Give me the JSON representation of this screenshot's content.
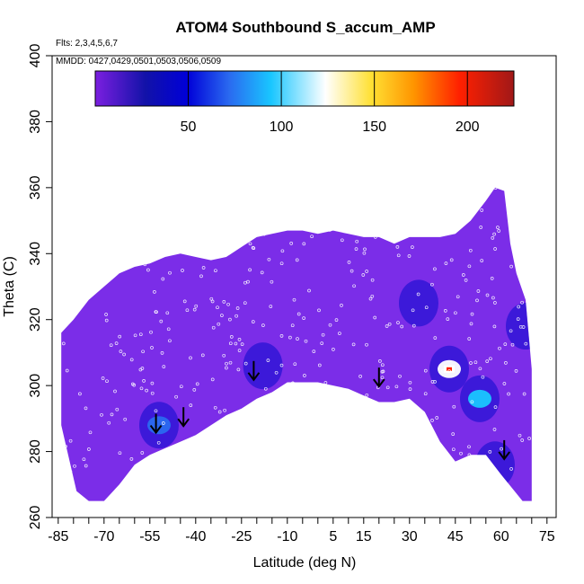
{
  "chart_data": {
    "type": "heatmap",
    "title": "ATOM4 Southbound S_accum_AMP",
    "flights_note": "Flts: 2,3,4,5,6,7",
    "dates_note": "MMDD: 0427,0429,0501,0503,0506,0509",
    "xlabel": "Latitude (deg N)",
    "ylabel": "Theta (C)",
    "xlim": [
      -87,
      78
    ],
    "ylim": [
      260,
      400
    ],
    "x_tick_labels": [
      "-85",
      "-70",
      "-55",
      "-40",
      "-25",
      "-10",
      "5",
      "15",
      "30",
      "45",
      "60",
      "75"
    ],
    "y_tick_labels": [
      "260",
      "280",
      "300",
      "320",
      "340",
      "360",
      "380",
      "400"
    ],
    "colorbar": {
      "range": [
        0,
        225
      ],
      "tick_labels": [
        "50",
        "100",
        "150",
        "200"
      ],
      "colors": [
        "#7b1fe0",
        "#1010a0",
        "#0000d8",
        "#2a6af0",
        "#19c6ff",
        "#ffffff",
        "#ffe033",
        "#ff9500",
        "#ff2000",
        "#a01010"
      ]
    },
    "background_field": {
      "typical_value": 8,
      "color": "#7b2de8"
    },
    "hotspots": [
      {
        "lat": -52,
        "theta": 288,
        "value": 60
      },
      {
        "lat": -18,
        "theta": 306,
        "value": 25
      },
      {
        "lat": 33,
        "theta": 325,
        "value": 22
      },
      {
        "lat": 43,
        "theta": 305,
        "value": 140
      },
      {
        "lat": 53,
        "theta": 296,
        "value": 95
      },
      {
        "lat": 58,
        "theta": 276,
        "value": 28
      },
      {
        "lat": 68,
        "theta": 318,
        "value": 18
      }
    ],
    "arrows": [
      {
        "lat": -53,
        "theta": 286
      },
      {
        "lat": -44,
        "theta": 288
      },
      {
        "lat": -21,
        "theta": 302
      },
      {
        "lat": 20,
        "theta": 300
      },
      {
        "lat": 61,
        "theta": 278
      }
    ]
  }
}
